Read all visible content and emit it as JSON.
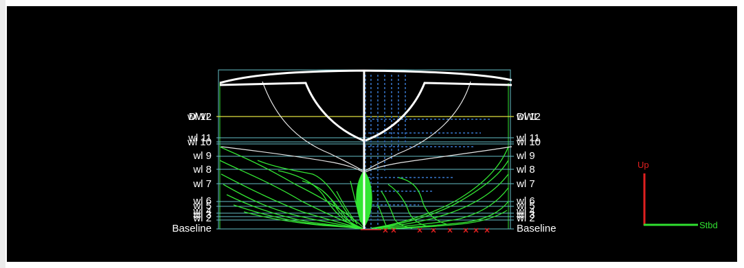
{
  "view": {
    "waterlines_left": [
      "DWL",
      "wl 12",
      "wl 11",
      "wl 10",
      "wl 9",
      "wl 8",
      "wl 7",
      "wl 6",
      "wl 5",
      "wl 4",
      "wl 3",
      "wl 2",
      "Baseline"
    ],
    "waterlines_right": [
      "DWL",
      "wl 12",
      "wl 11",
      "wl 10",
      "wl 9",
      "wl 8",
      "wl 7",
      "wl 6",
      "wl 5",
      "wl 4",
      "wl 3",
      "wl 2",
      "Baseline"
    ],
    "axis_up_label": "Up",
    "axis_stbd_label": "Stbd"
  },
  "colors": {
    "background": "#000000",
    "hull_white": "#ffffff",
    "station_green": "#33e633",
    "waterline_teal": "#66c0c8",
    "dwl_yellow": "#e0e040",
    "frame_blue": "#2a5a9a",
    "axis_red": "#e02020",
    "axis_green": "#30e030"
  }
}
